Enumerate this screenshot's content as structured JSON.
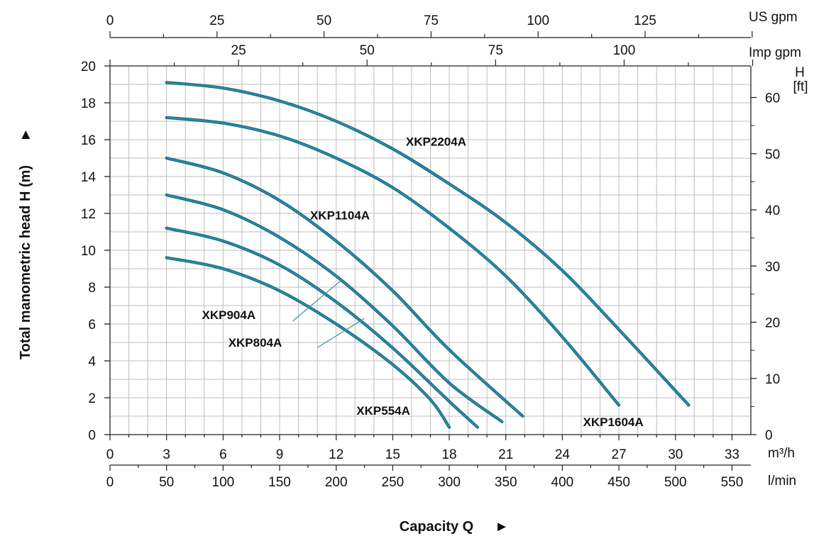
{
  "chart_data": {
    "type": "line",
    "x_axis": {
      "label": "Capacity Q",
      "arrow": "►",
      "unit": "m³/h",
      "range": [
        0,
        34
      ],
      "ticks": [
        0,
        3,
        6,
        9,
        12,
        15,
        18,
        21,
        24,
        27,
        30,
        33
      ]
    },
    "x_axis_lmin": {
      "unit": "l/min",
      "ticks": [
        0,
        50,
        100,
        150,
        200,
        250,
        300,
        350,
        400,
        450,
        500,
        550
      ]
    },
    "x_axis_usgpm": {
      "unit": "US gpm",
      "ticks": [
        0,
        25,
        50,
        75,
        100,
        125
      ]
    },
    "x_axis_impgpm": {
      "unit": "Imp gpm",
      "ticks": [
        25,
        50,
        75,
        100
      ]
    },
    "y_axis": {
      "label": "Total manometric head H (m)",
      "arrow": "►",
      "range": [
        0,
        20
      ],
      "ticks": [
        0,
        2,
        4,
        6,
        8,
        10,
        12,
        14,
        16,
        18,
        20
      ]
    },
    "y_axis_ft": {
      "label": "H",
      "unit": "[ft]",
      "ticks": [
        0,
        10,
        20,
        30,
        40,
        50,
        60
      ]
    },
    "grid": true,
    "series": [
      {
        "name": "XKP554A",
        "x": [
          3,
          6,
          9,
          12,
          15,
          17,
          18
        ],
        "y": [
          9.6,
          9.0,
          7.8,
          6.0,
          3.8,
          1.9,
          0.4
        ],
        "color": "#2b8aa6"
      },
      {
        "name": "XKP804A",
        "x": [
          3,
          6,
          9,
          12,
          15,
          18,
          19.5
        ],
        "y": [
          11.2,
          10.5,
          9.2,
          7.2,
          4.7,
          1.8,
          0.4
        ],
        "color": "#2b8aa6"
      },
      {
        "name": "XKP904A",
        "x": [
          3,
          6,
          9,
          12,
          15,
          18,
          20.8
        ],
        "y": [
          13.0,
          12.2,
          10.7,
          8.6,
          5.9,
          2.8,
          0.7
        ],
        "color": "#2b8aa6"
      },
      {
        "name": "XKP1104A",
        "x": [
          3,
          6,
          9,
          12,
          15,
          18,
          21.9
        ],
        "y": [
          15.0,
          14.2,
          12.7,
          10.5,
          7.8,
          4.6,
          1.0
        ],
        "color": "#2b8aa6"
      },
      {
        "name": "XKP1604A",
        "x": [
          3,
          6,
          9,
          12,
          15,
          18,
          21,
          24,
          27
        ],
        "y": [
          17.2,
          16.9,
          16.2,
          15.0,
          13.4,
          11.2,
          8.6,
          5.3,
          1.6
        ],
        "color": "#2b8aa6"
      },
      {
        "name": "XKP2204A",
        "x": [
          3,
          6,
          9,
          12,
          15,
          18,
          21,
          24,
          27,
          30.7
        ],
        "y": [
          19.1,
          18.8,
          18.1,
          17.0,
          15.5,
          13.6,
          11.5,
          8.9,
          5.7,
          1.6
        ],
        "color": "#2b8aa6"
      }
    ],
    "annotations": [
      {
        "text": "XKP2204A",
        "x": 17.3,
        "y": 15.9
      },
      {
        "text": "XKP1104A",
        "x": 12.2,
        "y": 11.9
      },
      {
        "text": "XKP904A",
        "x": 6.3,
        "y": 6.5,
        "leader_to": [
          12.3,
          8.4
        ]
      },
      {
        "text": "XKP804A",
        "x": 7.7,
        "y": 5.0,
        "leader_to": [
          13.5,
          6.3
        ]
      },
      {
        "text": "XKP554A",
        "x": 14.5,
        "y": 1.3
      },
      {
        "text": "XKP1604A",
        "x": 26.7,
        "y": 0.7
      }
    ]
  }
}
